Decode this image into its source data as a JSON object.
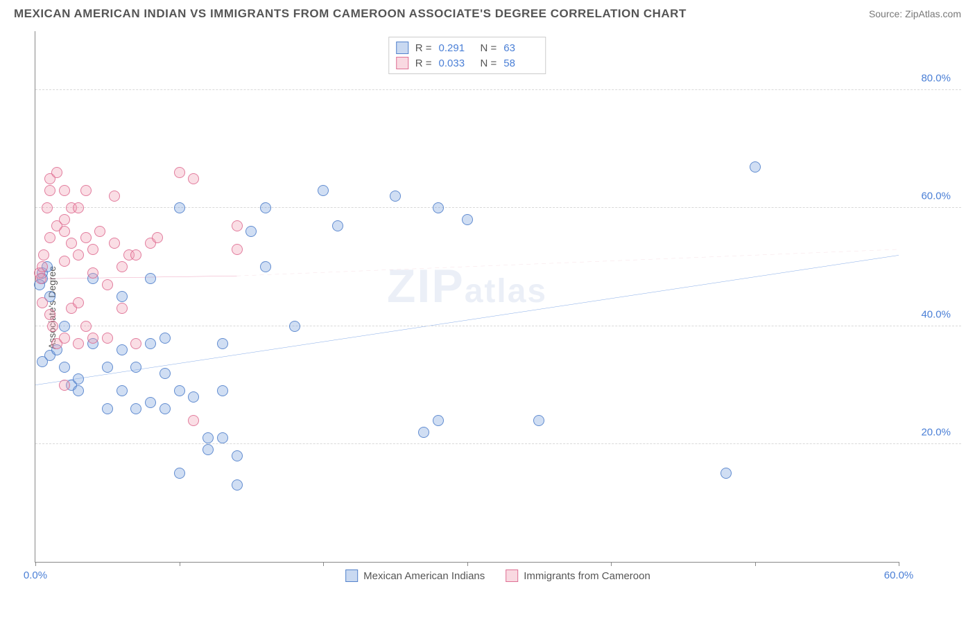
{
  "title": "MEXICAN AMERICAN INDIAN VS IMMIGRANTS FROM CAMEROON ASSOCIATE'S DEGREE CORRELATION CHART",
  "source": "Source: ZipAtlas.com",
  "watermark": "ZIPatlas",
  "ylabel": "Associate's Degree",
  "chart": {
    "type": "scatter",
    "background_color": "#ffffff",
    "grid_color": "#d8d8d8",
    "axis_color": "#888888",
    "label_color": "#4a7fd6",
    "xlim": [
      0,
      60
    ],
    "ylim": [
      0,
      90
    ],
    "xticks": [
      0,
      10,
      20,
      30,
      40,
      50,
      60
    ],
    "xtick_labels": [
      "0.0%",
      "",
      "",
      "",
      "",
      "",
      "60.0%"
    ],
    "yticks": [
      20,
      40,
      60,
      80
    ],
    "ytick_labels": [
      "20.0%",
      "40.0%",
      "60.0%",
      "80.0%"
    ],
    "marker_size": 16,
    "series": [
      {
        "name": "Mexican American Indians",
        "color_fill": "rgba(120,160,220,0.35)",
        "color_stroke": "rgba(70,120,200,0.8)",
        "R": "0.291",
        "N": "63",
        "trend_solid": {
          "x1": 0,
          "y1": 30,
          "x2": 60,
          "y2": 52,
          "color": "#2d6fd6",
          "width": 2.5
        },
        "trend_dashed": null,
        "points": [
          [
            0.5,
            48
          ],
          [
            0.5,
            49
          ],
          [
            0.8,
            50
          ],
          [
            0.3,
            47
          ],
          [
            1,
            45
          ],
          [
            1,
            35
          ],
          [
            1.5,
            36
          ],
          [
            0.5,
            34
          ],
          [
            2,
            33
          ],
          [
            2,
            40
          ],
          [
            2.5,
            30
          ],
          [
            3,
            31
          ],
          [
            3,
            29
          ],
          [
            4,
            48
          ],
          [
            4,
            37
          ],
          [
            5,
            33
          ],
          [
            5,
            26
          ],
          [
            6,
            45
          ],
          [
            6,
            36
          ],
          [
            6,
            29
          ],
          [
            7,
            26
          ],
          [
            7,
            33
          ],
          [
            8,
            48
          ],
          [
            8,
            37
          ],
          [
            8,
            27
          ],
          [
            9,
            32
          ],
          [
            9,
            38
          ],
          [
            9,
            26
          ],
          [
            10,
            29
          ],
          [
            10,
            15
          ],
          [
            10,
            60
          ],
          [
            11,
            28
          ],
          [
            12,
            21
          ],
          [
            12,
            19
          ],
          [
            13,
            29
          ],
          [
            13,
            37
          ],
          [
            13,
            21
          ],
          [
            14,
            18
          ],
          [
            14,
            13
          ],
          [
            15,
            56
          ],
          [
            16,
            60
          ],
          [
            16,
            50
          ],
          [
            18,
            40
          ],
          [
            20,
            63
          ],
          [
            21,
            57
          ],
          [
            25,
            62
          ],
          [
            27,
            22
          ],
          [
            28,
            60
          ],
          [
            28,
            24
          ],
          [
            30,
            58
          ],
          [
            35,
            24
          ],
          [
            48,
            15
          ],
          [
            50,
            67
          ]
        ]
      },
      {
        "name": "Immigrants from Cameroon",
        "color_fill": "rgba(240,160,180,0.35)",
        "color_stroke": "rgba(220,100,140,0.8)",
        "R": "0.033",
        "N": "58",
        "trend_solid": {
          "x1": 0,
          "y1": 48,
          "x2": 14,
          "y2": 48.5,
          "color": "#e06090",
          "width": 2.5
        },
        "trend_dashed": {
          "x1": 14,
          "y1": 48.5,
          "x2": 60,
          "y2": 53,
          "color": "#e8a8ba",
          "width": 1.5
        },
        "points": [
          [
            0.3,
            49
          ],
          [
            0.4,
            48
          ],
          [
            0.5,
            50
          ],
          [
            0.5,
            44
          ],
          [
            0.6,
            52
          ],
          [
            0.8,
            60
          ],
          [
            1,
            65
          ],
          [
            1,
            63
          ],
          [
            1,
            55
          ],
          [
            1,
            42
          ],
          [
            1.2,
            40
          ],
          [
            1.5,
            66
          ],
          [
            1.5,
            57
          ],
          [
            1.5,
            37
          ],
          [
            2,
            63
          ],
          [
            2,
            58
          ],
          [
            2,
            56
          ],
          [
            2,
            51
          ],
          [
            2,
            38
          ],
          [
            2,
            30
          ],
          [
            2.5,
            60
          ],
          [
            2.5,
            54
          ],
          [
            2.5,
            43
          ],
          [
            3,
            60
          ],
          [
            3,
            52
          ],
          [
            3,
            44
          ],
          [
            3,
            37
          ],
          [
            3.5,
            63
          ],
          [
            3.5,
            55
          ],
          [
            3.5,
            40
          ],
          [
            4,
            53
          ],
          [
            4,
            49
          ],
          [
            4,
            38
          ],
          [
            4.5,
            56
          ],
          [
            5,
            47
          ],
          [
            5,
            38
          ],
          [
            5.5,
            62
          ],
          [
            5.5,
            54
          ],
          [
            6,
            50
          ],
          [
            6,
            43
          ],
          [
            6.5,
            52
          ],
          [
            7,
            37
          ],
          [
            7,
            52
          ],
          [
            8,
            54
          ],
          [
            8.5,
            55
          ],
          [
            10,
            66
          ],
          [
            11,
            65
          ],
          [
            11,
            24
          ],
          [
            14,
            53
          ],
          [
            14,
            57
          ]
        ]
      }
    ]
  },
  "legend": {
    "series1": "Mexican American Indians",
    "series2": "Immigrants from Cameroon"
  },
  "stats_labels": {
    "R": "R  =",
    "N": "N  ="
  }
}
